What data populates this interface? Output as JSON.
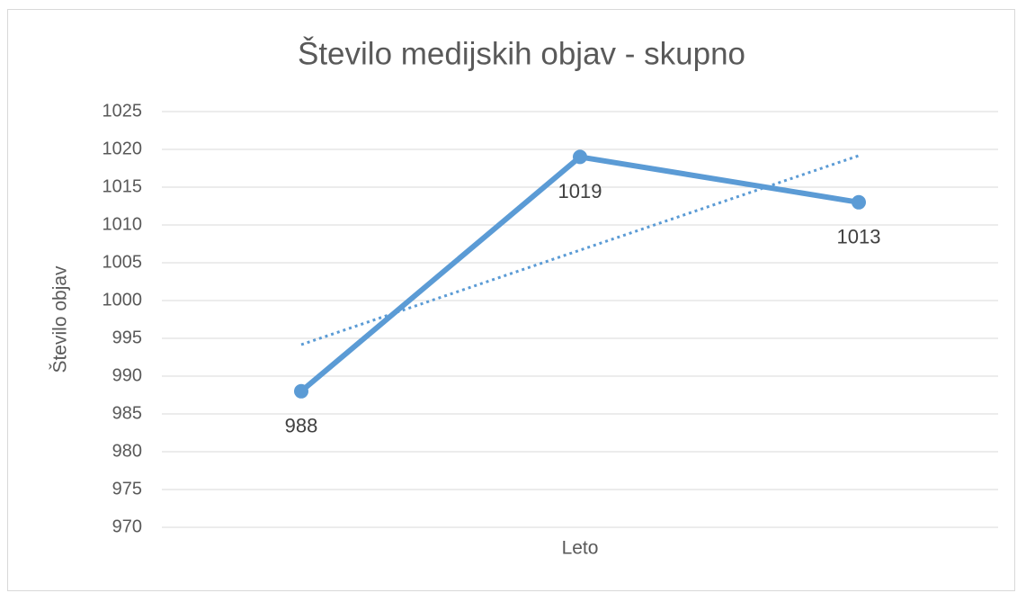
{
  "chart_data": {
    "type": "line",
    "title": "Število medijskih objav - skupno",
    "x_label": "Leto",
    "y_label": "Število objav",
    "categories": [
      null,
      null,
      null
    ],
    "series": [
      {
        "values": [
          988,
          1019,
          1013
        ],
        "color": "#5b9bd5"
      }
    ],
    "trendline": {
      "kind": "linear",
      "style": "dotted",
      "color": "#5b9bd5"
    },
    "ylim": [
      970,
      1025
    ],
    "yticks": [
      970,
      975,
      980,
      985,
      990,
      995,
      1000,
      1005,
      1010,
      1015,
      1020,
      1025
    ],
    "grid": true,
    "data_labels": "below"
  }
}
